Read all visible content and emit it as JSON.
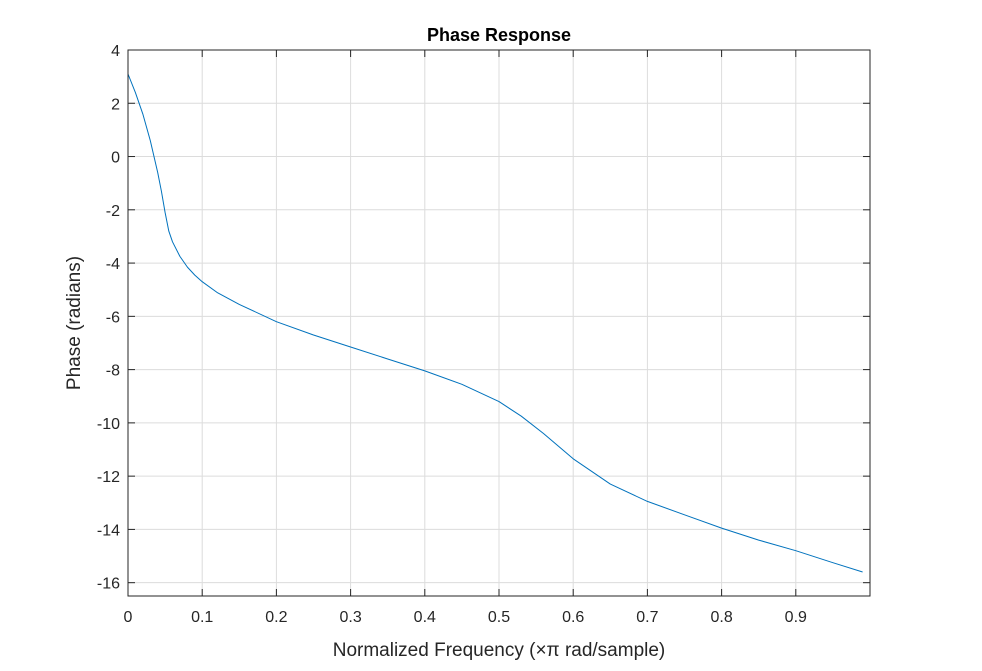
{
  "chart_data": {
    "type": "line",
    "title": "Phase Response",
    "xlabel": "Normalized Frequency (×π rad/sample)",
    "ylabel": "Phase (radians)",
    "xlim": [
      0,
      1
    ],
    "ylim": [
      -16.5,
      4
    ],
    "xticks": [
      0,
      0.1,
      0.2,
      0.3,
      0.4,
      0.5,
      0.6,
      0.7,
      0.8,
      0.9
    ],
    "xtick_labels": [
      "0",
      "0.1",
      "0.2",
      "0.3",
      "0.4",
      "0.5",
      "0.6",
      "0.7",
      "0.8",
      "0.9"
    ],
    "yticks": [
      4,
      2,
      0,
      -2,
      -4,
      -6,
      -8,
      -10,
      -12,
      -14,
      -16
    ],
    "ytick_labels": [
      "4",
      "2",
      "0",
      "-2",
      "-4",
      "-6",
      "-8",
      "-10",
      "-12",
      "-14",
      "-16"
    ],
    "grid": true,
    "colors": {
      "line": "#0072BD",
      "grid": "#dcdcdc",
      "axes": "#262626"
    },
    "series": [
      {
        "x": [
          0,
          0.01,
          0.02,
          0.03,
          0.04,
          0.045,
          0.05,
          0.055,
          0.06,
          0.07,
          0.08,
          0.09,
          0.1,
          0.12,
          0.15,
          0.2,
          0.25,
          0.3,
          0.35,
          0.4,
          0.45,
          0.5,
          0.53,
          0.56,
          0.6,
          0.65,
          0.7,
          0.75,
          0.8,
          0.85,
          0.9,
          0.95,
          0.99
        ],
        "y": [
          3.1,
          2.4,
          1.6,
          0.6,
          -0.6,
          -1.3,
          -2.1,
          -2.8,
          -3.2,
          -3.75,
          -4.15,
          -4.45,
          -4.7,
          -5.1,
          -5.55,
          -6.2,
          -6.7,
          -7.15,
          -7.6,
          -8.05,
          -8.55,
          -9.2,
          -9.75,
          -10.4,
          -11.35,
          -12.3,
          -12.95,
          -13.45,
          -13.95,
          -14.4,
          -14.8,
          -15.25,
          -15.6
        ]
      }
    ]
  }
}
